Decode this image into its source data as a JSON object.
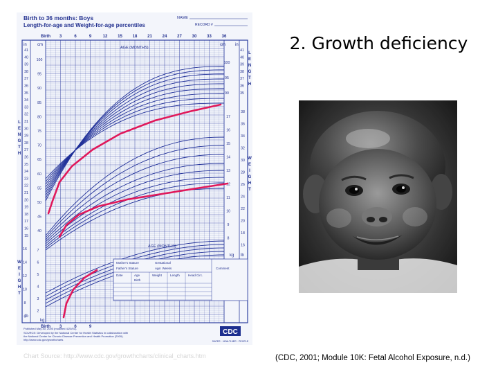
{
  "chart": {
    "title_line1": "Birth to 36 months: Boys",
    "title_line2": "Length-for-age and Weight-for-age percentiles",
    "name_label": "NAME",
    "record_label": "RECORD #",
    "age_header_labels": [
      "Birth",
      "3",
      "6",
      "9",
      "12",
      "15",
      "18",
      "21",
      "24",
      "27",
      "30",
      "33",
      "36"
    ],
    "age_axis_label": "AGE (MONTHS)",
    "unit_cm": "cm",
    "unit_in": "in",
    "unit_kg": "kg",
    "unit_lb": "lb",
    "length_side_label": "LENGTH",
    "weight_side_label": "WEIGHT",
    "left_in_ticks": [
      "41",
      "40",
      "39",
      "38",
      "37",
      "36",
      "35",
      "34",
      "33",
      "32",
      "31",
      "30",
      "29",
      "28",
      "27",
      "26",
      "25",
      "24",
      "23",
      "22",
      "21",
      "20",
      "19",
      "18",
      "17",
      "16",
      "15"
    ],
    "left_cm_ticks": [
      "100",
      "95",
      "90",
      "85",
      "80",
      "75",
      "70",
      "65",
      "60",
      "55",
      "50",
      "45",
      "40"
    ],
    "right_in_ticks": [
      "41",
      "40",
      "39",
      "38",
      "37",
      "36",
      "35"
    ],
    "right_cm_ticks": [
      "100",
      "95",
      "90"
    ],
    "right_kg_ticks": [
      "17",
      "16",
      "15",
      "14",
      "13",
      "12",
      "11",
      "10",
      "9",
      "8"
    ],
    "right_lb_ticks": [
      "38",
      "36",
      "34",
      "32",
      "30",
      "28",
      "26",
      "24",
      "22",
      "20",
      "18",
      "16"
    ],
    "weight_lb_ticks": [
      "16",
      "14",
      "12",
      "10",
      "8",
      "6"
    ],
    "weight_kg_ticks": [
      "7",
      "6",
      "5",
      "4",
      "3",
      "2"
    ],
    "bottom_age_labels": [
      "Birth",
      "3",
      "6",
      "9"
    ],
    "table_labels": {
      "mothers_stature": "Mother's Stature",
      "gestational": "Gestational",
      "fathers_stature": "Father's Stature",
      "age_weeks": "Age:        Weeks",
      "comment": "Comment",
      "date": "Date",
      "age": "Age",
      "weight": "Weight",
      "length": "Length",
      "head_circ": "Head Circ.",
      "birth": "Birth"
    },
    "footer_line1": "Published May 30, 2000 (modified 4/20/01).",
    "footer_line2": "SOURCE: Developed by the National Center for Health Statistics in collaboration with",
    "footer_line3": "the National Center for Chronic Disease Prevention and Health Promotion (2000).",
    "footer_line4": "http://www.cdc.gov/growthcharts",
    "cdc_logo": "CDC",
    "cdc_tagline": "SAFER · HEALTHIER · PEOPLE"
  },
  "title": "2. Growth deficiency",
  "source_note": "Chart Source: http://www.cdc.gov/growthcharts/clinical_charts.htm",
  "citation": "(CDC, 2001; Module 10K: Fetal Alcohol Exposure, n.d.)",
  "colors": {
    "grid": "#2e3fa0",
    "curve": "#1f2f98",
    "patient": "#e0185a",
    "panel": "#f3f5fb"
  }
}
